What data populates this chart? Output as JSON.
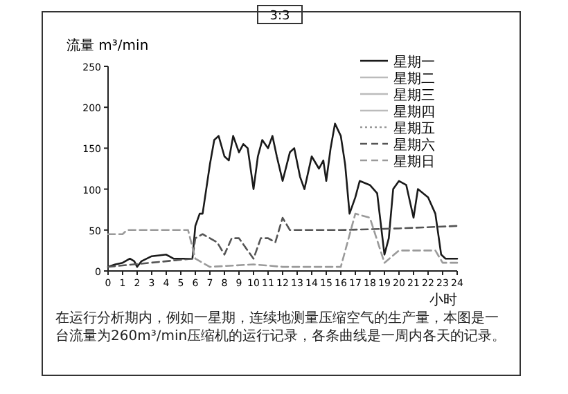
{
  "chart_data": {
    "type": "line",
    "title": "3:3",
    "ylabel": "流量 m³/min",
    "xlabel": "小时",
    "annotations": [
      "在运行分析期内，例如一星期，连续地测量压缩空气的生产量，本图是一台流量为260m³/min压缩机的运行记录，各条曲线是一周内各天的记录。"
    ],
    "xlim": [
      0,
      24
    ],
    "ylim": [
      0,
      250
    ],
    "xticks": [
      0,
      1,
      2,
      3,
      4,
      5,
      6,
      7,
      8,
      9,
      10,
      11,
      12,
      13,
      14,
      15,
      16,
      17,
      18,
      19,
      20,
      21,
      22,
      23,
      24
    ],
    "yticks": [
      0,
      50,
      100,
      150,
      200,
      250
    ],
    "legend": "top right",
    "grid": false,
    "marker": "none",
    "series": [
      {
        "name": "星期一",
        "color": "#1a1a1a",
        "line_style": "solid",
        "x": [
          0,
          0.5,
          1,
          1.5,
          1.8,
          2,
          2.3,
          3,
          4,
          4.5,
          5,
          5.8,
          6,
          6.3,
          6.5,
          7,
          7.3,
          7.6,
          8,
          8.3,
          8.6,
          9,
          9.3,
          9.6,
          10,
          10.3,
          10.6,
          11,
          11.3,
          11.6,
          12,
          12.5,
          12.8,
          13.2,
          13.5,
          14,
          14.5,
          14.8,
          15,
          15.3,
          15.6,
          16,
          16.3,
          16.6,
          17,
          17.3,
          18,
          18.5,
          19,
          19.3,
          19.6,
          20,
          20.5,
          21,
          21.3,
          22,
          22.5,
          22.9,
          23.2,
          24
        ],
        "values": [
          5,
          8,
          10,
          15,
          12,
          5,
          12,
          18,
          20,
          15,
          15,
          15,
          55,
          70,
          70,
          130,
          160,
          165,
          140,
          135,
          165,
          145,
          155,
          150,
          100,
          140,
          160,
          150,
          165,
          140,
          110,
          145,
          150,
          115,
          100,
          140,
          125,
          135,
          110,
          150,
          180,
          165,
          130,
          70,
          90,
          110,
          105,
          95,
          20,
          40,
          100,
          110,
          105,
          65,
          100,
          90,
          70,
          20,
          15,
          15
        ]
      },
      {
        "name": "星期二",
        "color": "#bbbbbb",
        "line_style": "solid"
      },
      {
        "name": "星期三",
        "color": "#bbbbbb",
        "line_style": "solid"
      },
      {
        "name": "星期四",
        "color": "#bbbbbb",
        "line_style": "solid"
      },
      {
        "name": "星期五",
        "color": "#999999",
        "line_style": "dotted"
      },
      {
        "name": "星期六",
        "color": "#555555",
        "line_style": "dashed",
        "x": [
          0,
          5.8,
          6,
          6.5,
          7,
          7.5,
          8,
          8.5,
          9,
          10,
          10.5,
          11,
          11.5,
          12,
          12.5,
          16,
          20,
          24
        ],
        "values": [
          5,
          15,
          40,
          45,
          40,
          35,
          20,
          40,
          40,
          15,
          40,
          40,
          35,
          65,
          50,
          50,
          52,
          55
        ]
      },
      {
        "name": "星期日",
        "color": "#9a9a9a",
        "line_style": "dashed",
        "x": [
          0,
          1,
          1.3,
          5.5,
          6,
          7,
          10,
          12,
          16,
          17,
          18,
          19,
          20,
          22.5,
          23,
          24
        ],
        "values": [
          45,
          45,
          50,
          50,
          15,
          5,
          8,
          5,
          5,
          70,
          65,
          10,
          25,
          25,
          10,
          10
        ]
      }
    ]
  }
}
